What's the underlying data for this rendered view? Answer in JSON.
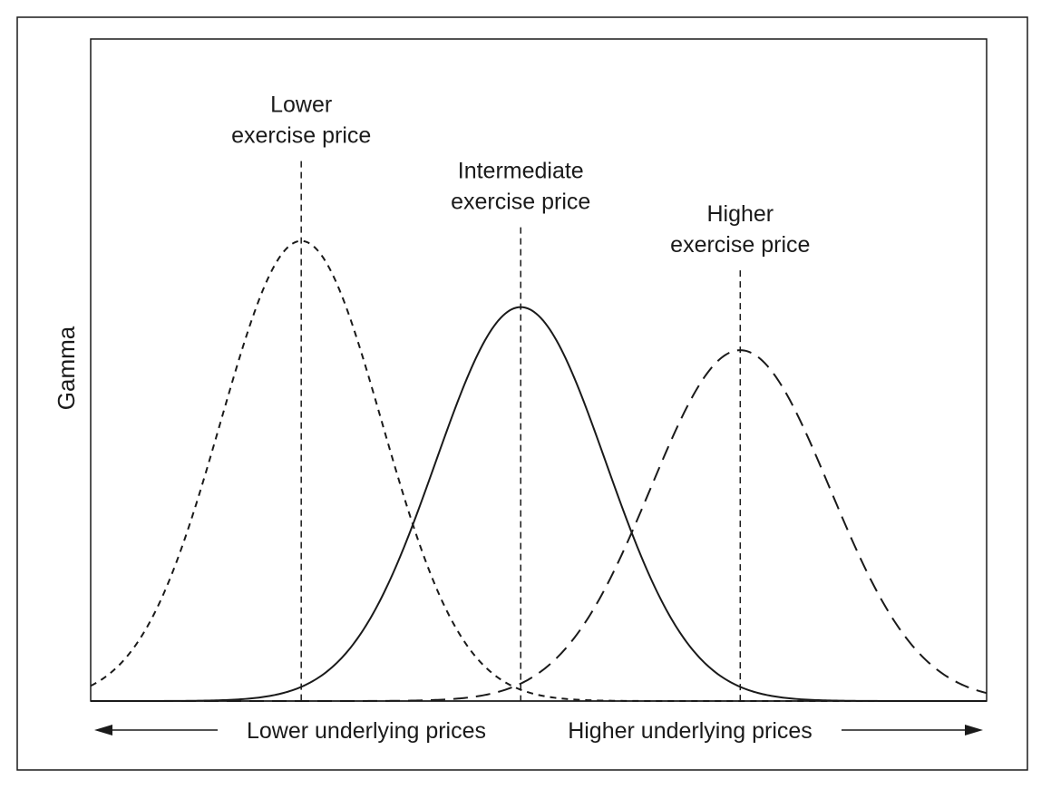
{
  "chart_data": {
    "type": "line",
    "ylabel": "Gamma",
    "xlabel_left": "Lower underlying prices",
    "xlabel_right": "Higher underlying prices",
    "x_range": [
      0,
      100
    ],
    "y_range": [
      0,
      100
    ],
    "grid": false,
    "series": [
      {
        "key": "lower",
        "label_lines": [
          "Lower",
          "exercise price"
        ],
        "center": 23.5,
        "peak": 69.5,
        "sigma": 9.0,
        "line_style": "short-dash",
        "color": "#1a1a1a"
      },
      {
        "key": "intermediate",
        "label_lines": [
          "Intermediate",
          "exercise price"
        ],
        "center": 48.0,
        "peak": 59.5,
        "sigma": 9.5,
        "line_style": "solid",
        "color": "#1a1a1a"
      },
      {
        "key": "higher",
        "label_lines": [
          "Higher",
          "exercise price"
        ],
        "center": 72.5,
        "peak": 53.0,
        "sigma": 10.0,
        "line_style": "long-dash",
        "color": "#1a1a1a"
      }
    ]
  }
}
